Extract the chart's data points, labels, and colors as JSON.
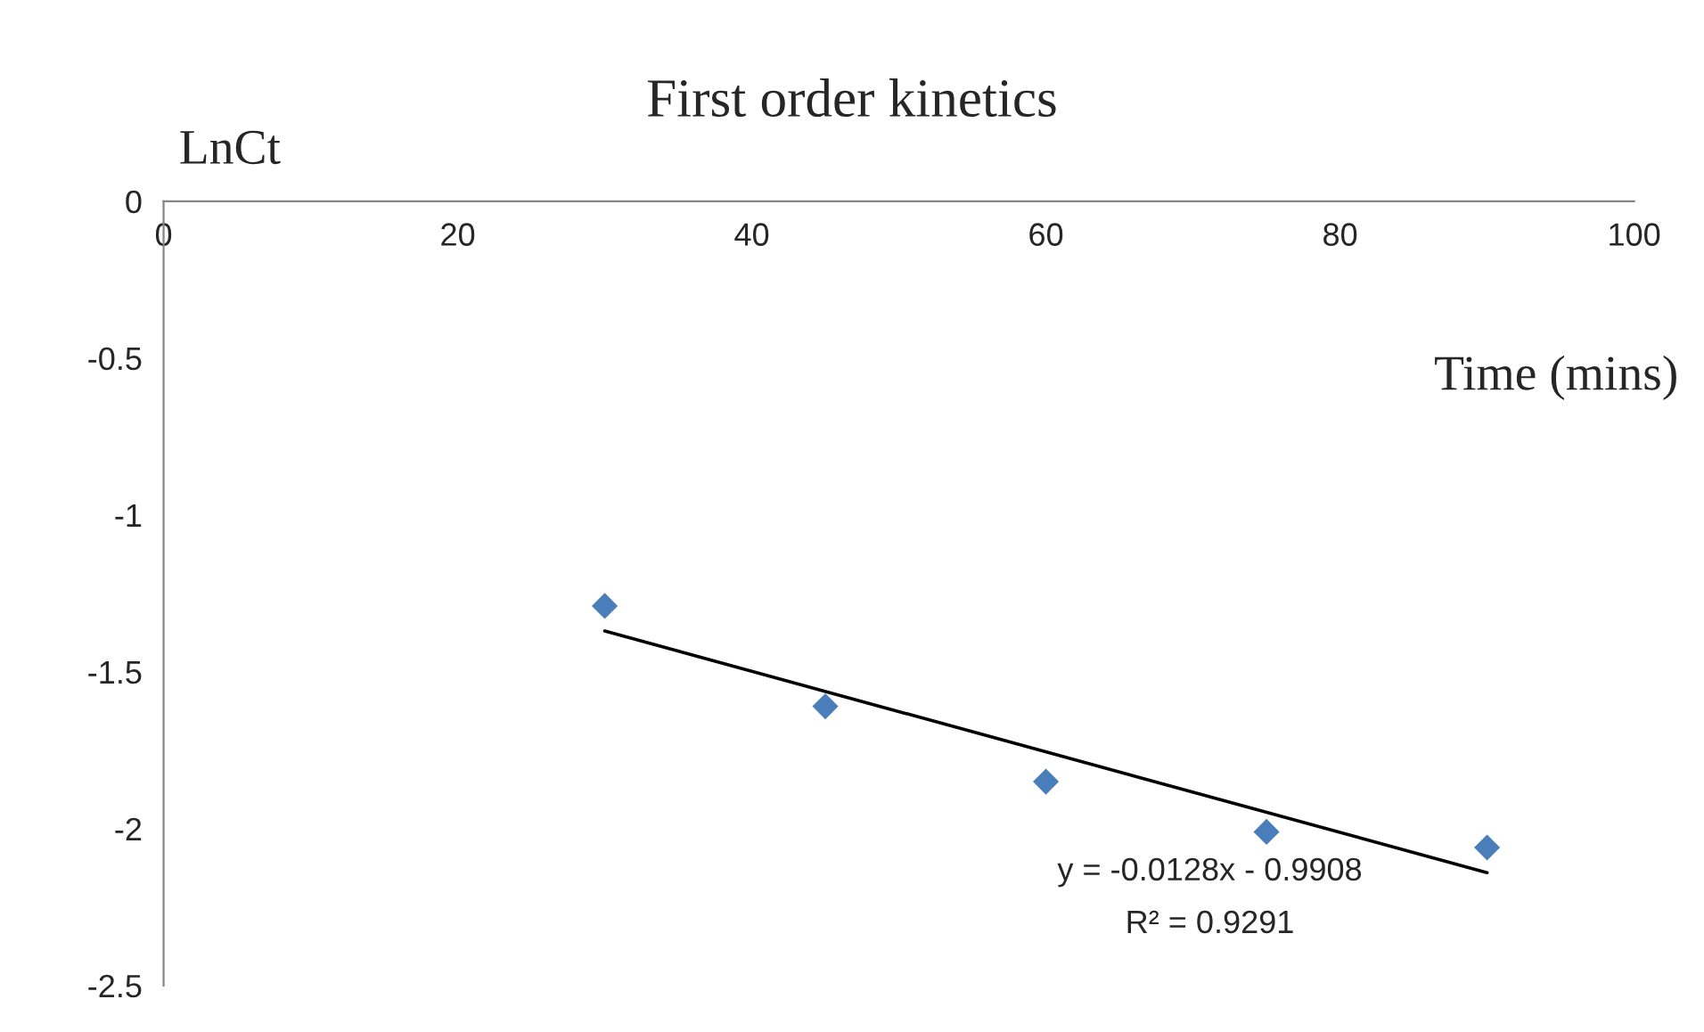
{
  "chart_data": {
    "type": "scatter",
    "title": "First order kinetics",
    "xlabel": "Time (mins)",
    "ylabel": "LnCt",
    "series": [
      {
        "color": "#4a7ebb",
        "marker": "diamond",
        "x": [
          30,
          45,
          60,
          75,
          90
        ],
        "values": [
          -1.29,
          -1.61,
          -1.85,
          -2.01,
          -2.06
        ]
      },
      {
        "type": "line",
        "color": "#000000",
        "marker": "none",
        "line_style": "solid",
        "x": [
          30,
          90
        ],
        "values": [
          -1.37,
          -2.14
        ]
      }
    ],
    "annotations": [
      "y = -0.0128x - 0.9908",
      "R² = 0.9291"
    ],
    "xlim": [
      0,
      100
    ],
    "xticks": [
      0,
      20,
      40,
      60,
      80,
      100
    ],
    "ylim": [
      -2.5,
      0
    ],
    "yticks": [
      0,
      -0.5,
      -1,
      -1.5,
      -2,
      -2.5
    ],
    "grid": false,
    "legend": false
  }
}
